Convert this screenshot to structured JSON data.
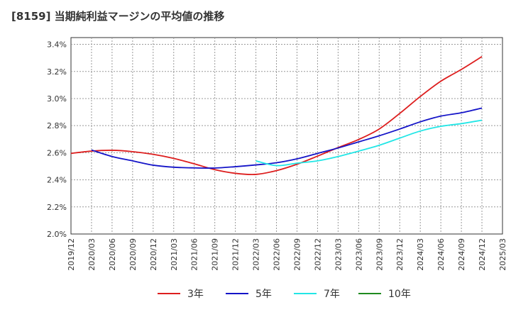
{
  "title": "[8159]  当期純利益マージンの平均値の推移",
  "chart_data": {
    "type": "line",
    "title": "[8159]  当期純利益マージンの平均値の推移",
    "xlabel": "",
    "ylabel": "",
    "x_tick_labels": [
      "2019/12",
      "2020/03",
      "2020/06",
      "2020/09",
      "2020/12",
      "2021/03",
      "2021/06",
      "2021/09",
      "2021/12",
      "2022/03",
      "2022/06",
      "2022/09",
      "2022/12",
      "2023/03",
      "2023/06",
      "2023/09",
      "2023/12",
      "2024/03",
      "2024/06",
      "2024/09",
      "2024/12",
      "2025/03"
    ],
    "y_tick_labels": [
      "2.0%",
      "2.2%",
      "2.4%",
      "2.6%",
      "2.8%",
      "3.0%",
      "3.2%",
      "3.4%"
    ],
    "ylim": [
      2.0,
      3.45
    ],
    "y_unit": "%",
    "grid": true,
    "legend_position": "bottom",
    "series": [
      {
        "name": "3年",
        "color": "#dd1e1e",
        "points": [
          [
            "2019/12",
            2.595
          ],
          [
            "2020/03",
            2.612
          ],
          [
            "2020/06",
            2.618
          ],
          [
            "2020/09",
            2.608
          ],
          [
            "2020/12",
            2.588
          ],
          [
            "2021/03",
            2.558
          ],
          [
            "2021/06",
            2.518
          ],
          [
            "2021/09",
            2.475
          ],
          [
            "2021/12",
            2.448
          ],
          [
            "2022/03",
            2.44
          ],
          [
            "2022/06",
            2.468
          ],
          [
            "2022/09",
            2.515
          ],
          [
            "2022/12",
            2.575
          ],
          [
            "2023/03",
            2.638
          ],
          [
            "2023/06",
            2.698
          ],
          [
            "2023/09",
            2.775
          ],
          [
            "2023/12",
            2.89
          ],
          [
            "2024/03",
            3.015
          ],
          [
            "2024/06",
            3.128
          ],
          [
            "2024/09",
            3.215
          ],
          [
            "2024/12",
            3.31
          ]
        ]
      },
      {
        "name": "5年",
        "color": "#1414c8",
        "points": [
          [
            "2020/03",
            2.62
          ],
          [
            "2020/06",
            2.572
          ],
          [
            "2020/09",
            2.54
          ],
          [
            "2020/12",
            2.508
          ],
          [
            "2021/03",
            2.493
          ],
          [
            "2021/06",
            2.488
          ],
          [
            "2021/09",
            2.487
          ],
          [
            "2021/12",
            2.497
          ],
          [
            "2022/03",
            2.51
          ],
          [
            "2022/06",
            2.526
          ],
          [
            "2022/09",
            2.555
          ],
          [
            "2022/12",
            2.595
          ],
          [
            "2023/03",
            2.635
          ],
          [
            "2023/06",
            2.68
          ],
          [
            "2023/09",
            2.725
          ],
          [
            "2023/12",
            2.775
          ],
          [
            "2024/03",
            2.828
          ],
          [
            "2024/06",
            2.87
          ],
          [
            "2024/09",
            2.895
          ],
          [
            "2024/12",
            2.93
          ]
        ]
      },
      {
        "name": "7年",
        "color": "#22e6e6",
        "points": [
          [
            "2022/03",
            2.54
          ],
          [
            "2022/06",
            2.505
          ],
          [
            "2022/09",
            2.523
          ],
          [
            "2022/12",
            2.54
          ],
          [
            "2023/03",
            2.572
          ],
          [
            "2023/06",
            2.612
          ],
          [
            "2023/09",
            2.655
          ],
          [
            "2023/12",
            2.708
          ],
          [
            "2024/03",
            2.76
          ],
          [
            "2024/06",
            2.795
          ],
          [
            "2024/09",
            2.815
          ],
          [
            "2024/12",
            2.84
          ]
        ]
      },
      {
        "name": "10年",
        "color": "#1f8a1f",
        "points": []
      }
    ]
  }
}
